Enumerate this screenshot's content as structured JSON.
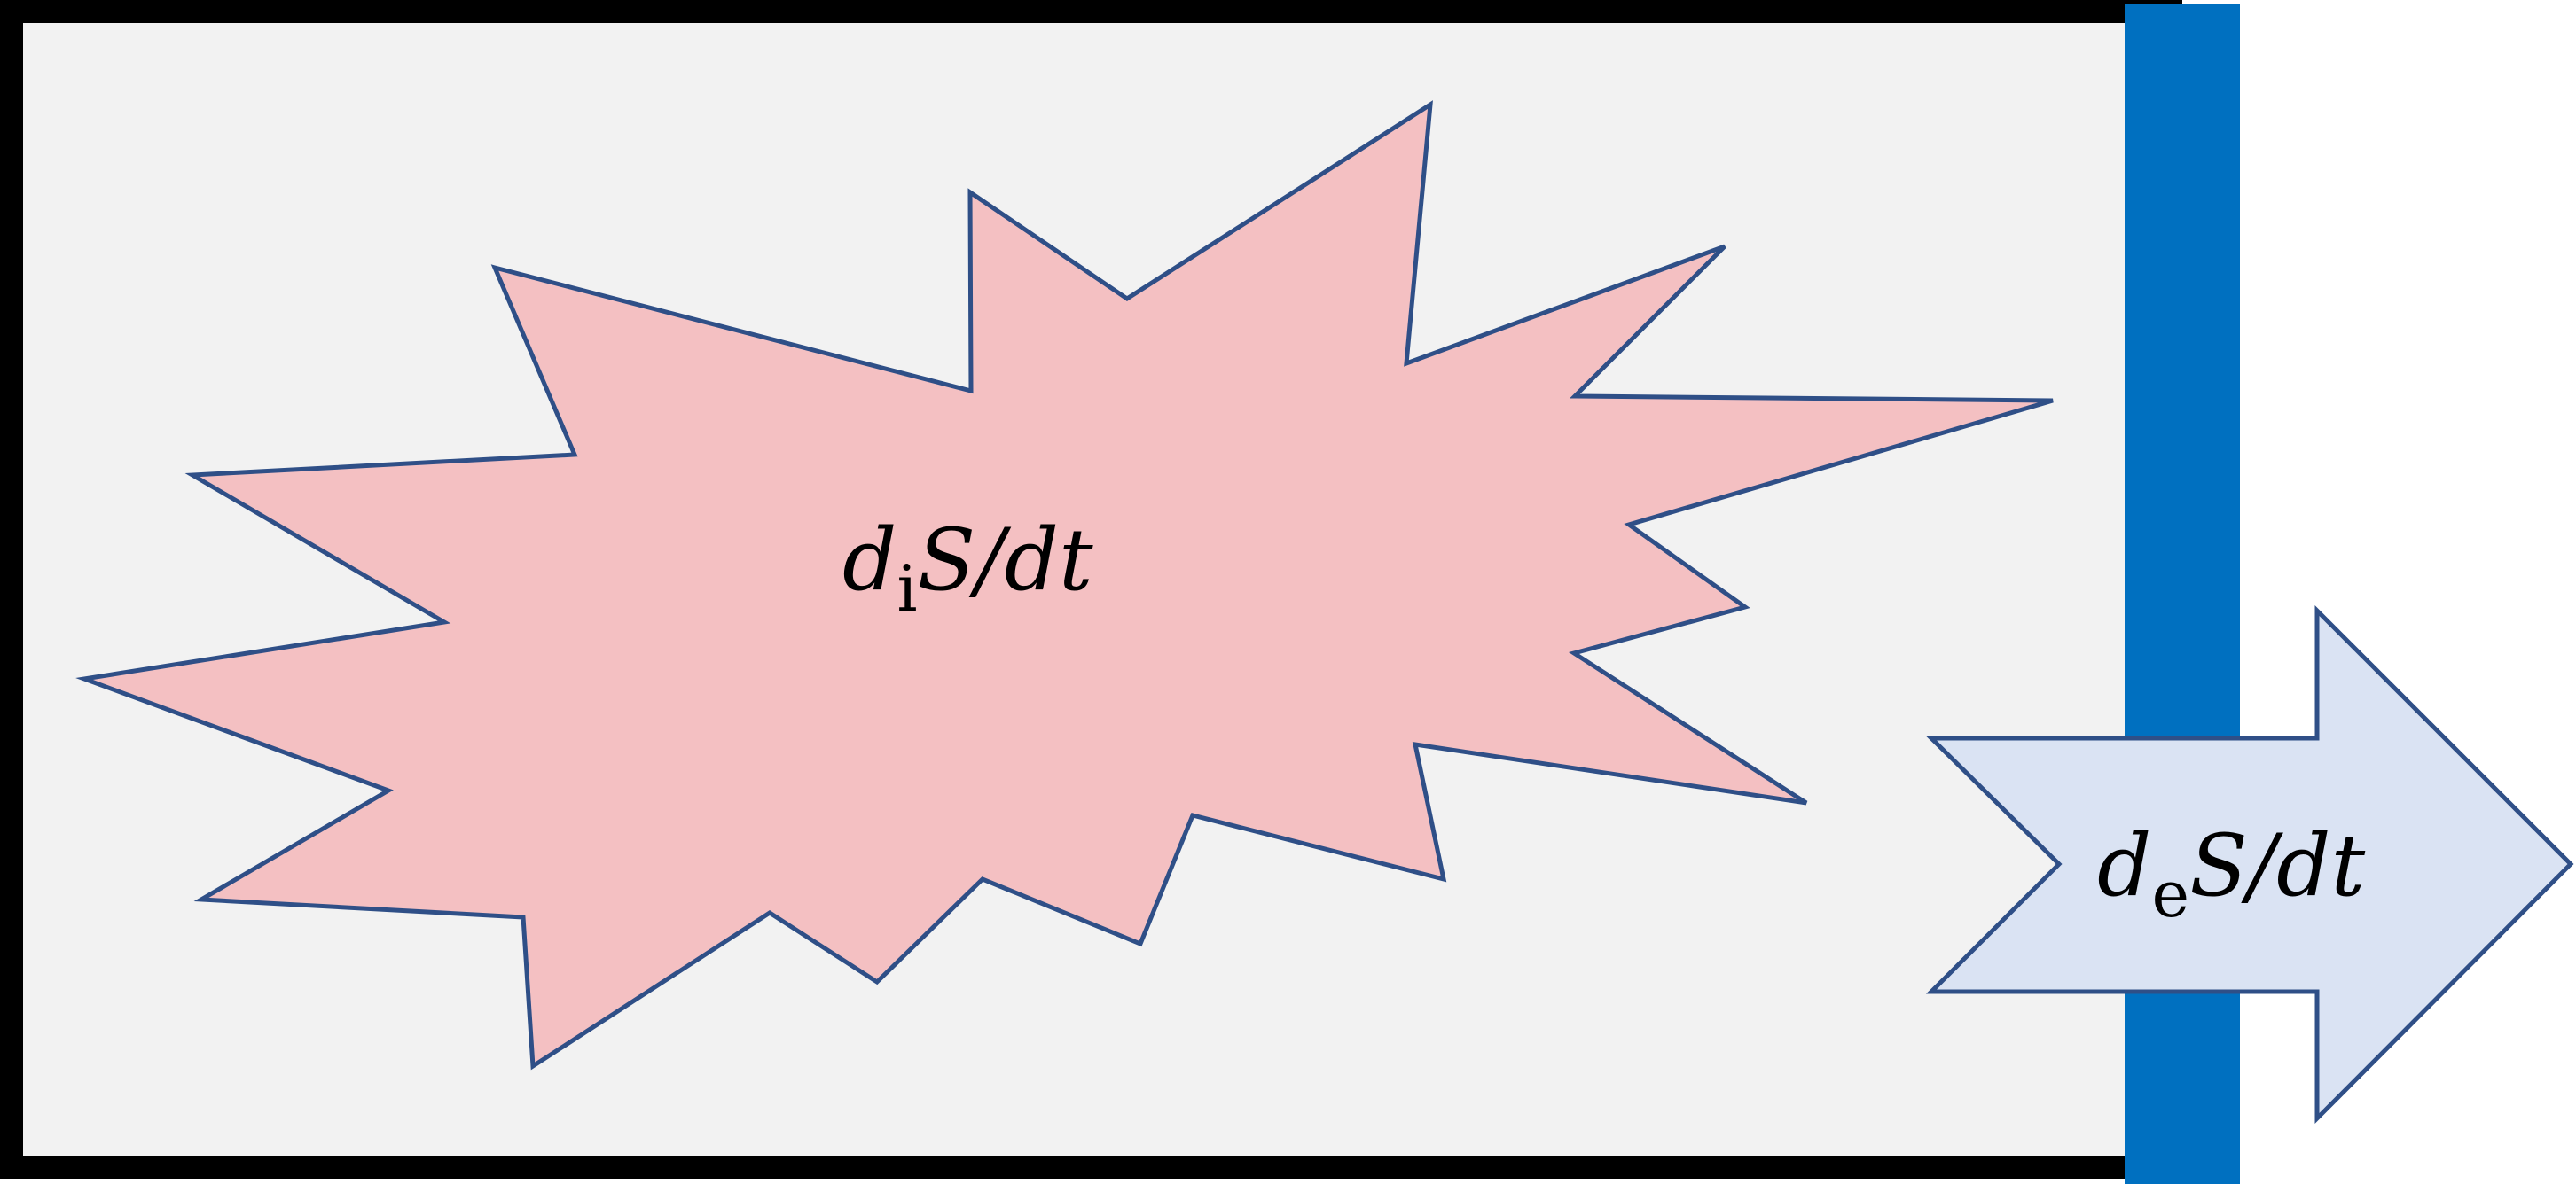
{
  "diagram": {
    "internal_label": {
      "prefix": "d",
      "subscript": "i",
      "suffix": "S/dt"
    },
    "external_label": {
      "prefix": "d",
      "subscript": "e",
      "suffix": "S/dt"
    }
  },
  "colors": {
    "system_border": "#000000",
    "system_fill": "#f2f2f2",
    "wall": "#0070c0",
    "burst_fill": "#f4c0c2",
    "burst_stroke": "#2f4f87",
    "arrow_fill": "#dae3f3",
    "arrow_stroke": "#2f4f87"
  }
}
